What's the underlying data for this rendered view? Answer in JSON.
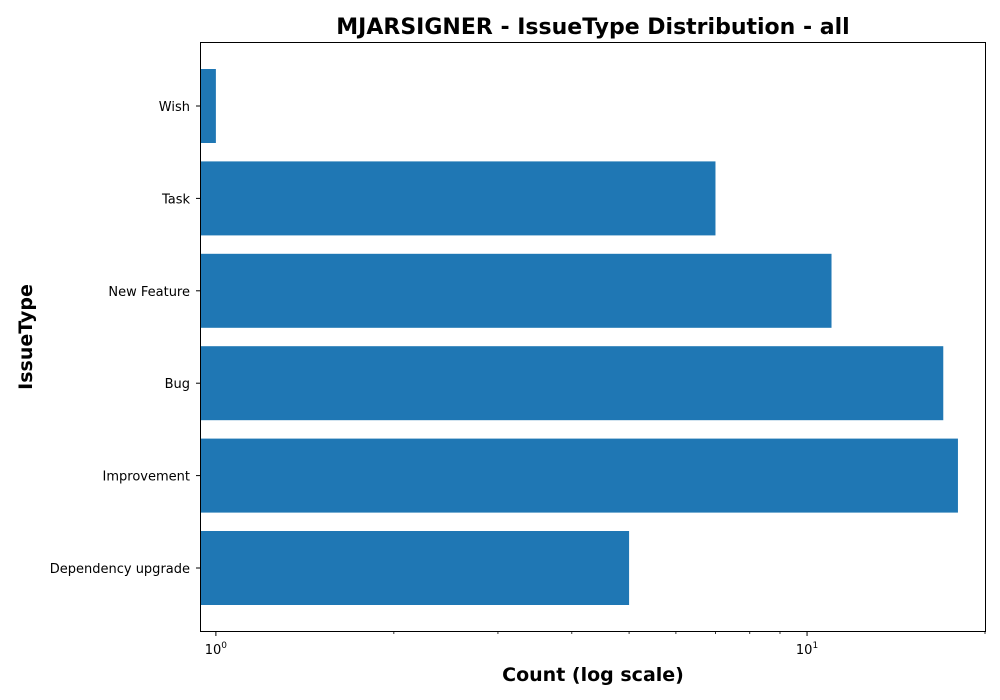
{
  "chart_data": {
    "type": "bar",
    "orientation": "horizontal",
    "title": "MJARSIGNER - IssueType Distribution - all",
    "xlabel": "Count (log scale)",
    "ylabel": "IssueType",
    "x_scale": "log",
    "xlim": [
      0.94,
      20
    ],
    "categories": [
      "Dependency upgrade",
      "Improvement",
      "Bug",
      "New Feature",
      "Task",
      "Wish"
    ],
    "values": [
      5,
      18,
      17,
      11,
      7,
      1
    ],
    "x_ticks": [
      {
        "value": 1,
        "base": "10",
        "exponent": "0"
      },
      {
        "value": 10,
        "base": "10",
        "exponent": "1"
      }
    ],
    "grid": false,
    "bar_color": "#1f77b4"
  }
}
